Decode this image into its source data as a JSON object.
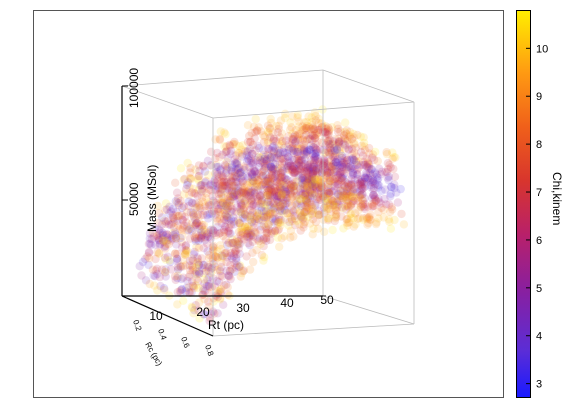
{
  "chart_data": {
    "type": "scatter",
    "subtype": "3d-scatter",
    "title": "",
    "axes": {
      "x": {
        "label": "Rt (pc)",
        "ticks": [
          "10",
          "20",
          "30",
          "40",
          "50"
        ],
        "range": [
          0,
          50
        ]
      },
      "y": {
        "label": "Rc (pc)",
        "ticks": [
          "0.2",
          "0.4",
          "0.6",
          "0.8"
        ],
        "range": [
          0,
          0.9
        ]
      },
      "z": {
        "label": "Mass (MSol)",
        "ticks": [
          "50000",
          "100000"
        ],
        "range": [
          0,
          100000
        ]
      }
    },
    "colorbar": {
      "label": "Chi,kinem",
      "ticks": [
        "3",
        "4",
        "5",
        "6",
        "7",
        "8",
        "9",
        "10"
      ],
      "range": [
        2.7,
        10.8
      ],
      "colormap": [
        "#1a1aff",
        "#5b2dd6",
        "#8a1f9e",
        "#b8206a",
        "#d8352d",
        "#f0601a",
        "#ff9a12",
        "#ffee00"
      ]
    },
    "grid": false,
    "legend": "none",
    "description_of_distribution": "Mass rises with Rt, saturating near 80000 MSol at Rt≈50; low chi (blue) along the ridge, high chi (yellow) at the edges"
  }
}
